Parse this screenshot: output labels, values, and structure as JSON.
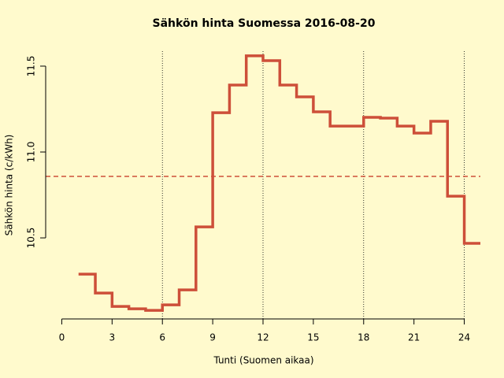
{
  "chart_data": {
    "type": "step",
    "title": "Sähkön hinta Suomessa 2016-08-20",
    "x_label": "Tunti (Suomen aikaa)",
    "y_label": "Sähkön hinta (c/kWh)",
    "x": [
      1,
      2,
      3,
      4,
      5,
      6,
      7,
      8,
      9,
      10,
      11,
      12,
      13,
      14,
      15,
      16,
      17,
      18,
      19,
      20,
      21,
      22,
      23,
      24
    ],
    "series": [
      {
        "color": "#cd4f39",
        "values": [
          10.289,
          10.179,
          10.101,
          10.087,
          10.078,
          10.11,
          10.197,
          10.564,
          11.229,
          11.39,
          11.56,
          11.532,
          11.39,
          11.321,
          11.234,
          11.151,
          11.151,
          11.202,
          11.197,
          11.151,
          11.11,
          11.179,
          10.743,
          10.468
        ]
      }
    ],
    "mean_line": 10.858,
    "mean_color": "#cd4f39",
    "vlines": [
      6,
      12,
      18,
      24
    ],
    "xlim": [
      -0.96,
      24.96
    ],
    "ylim": [
      10.028,
      11.587
    ],
    "xticks": [
      0,
      3,
      6,
      9,
      12,
      15,
      18,
      21,
      24
    ],
    "yticks": [
      {
        "value": 10.5,
        "label": "10.5"
      },
      {
        "value": 11.0,
        "label": "11.0"
      },
      {
        "value": 11.5,
        "label": "11.5"
      }
    ]
  }
}
